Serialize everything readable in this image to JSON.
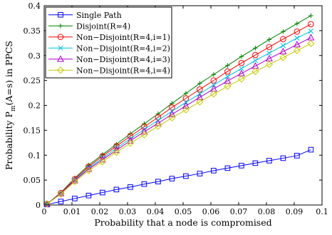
{
  "chart_data": {
    "type": "line",
    "title": "",
    "xlabel": "Probability that a node is compromised",
    "ylabel_main": "Probability P",
    "ylabel_sub": "m",
    "ylabel_rest": "(A=s) in PPCS",
    "xlim": [
      0,
      0.1
    ],
    "ylim": [
      0,
      0.4
    ],
    "xticks": [
      0,
      0.01,
      0.02,
      0.03,
      0.04,
      0.05,
      0.06,
      0.07,
      0.08,
      0.09,
      0.1
    ],
    "xtick_labels": [
      "0",
      "0.01",
      "0.02",
      "0.03",
      "0.04",
      "0.05",
      "0.06",
      "0.07",
      "0.08",
      "0.09",
      "0.1"
    ],
    "yticks": [
      0,
      0.05,
      0.1,
      0.15,
      0.2,
      0.25,
      0.3,
      0.35,
      0.4
    ],
    "ytick_labels": [
      "0",
      "0.05",
      "0.1",
      "0.15",
      "0.2",
      "0.25",
      "0.3",
      "0.35",
      "0.4"
    ],
    "grid": false,
    "legend_position": "top-left",
    "x": [
      0.001,
      0.006,
      0.011,
      0.016,
      0.021,
      0.026,
      0.031,
      0.036,
      0.041,
      0.046,
      0.051,
      0.056,
      0.061,
      0.066,
      0.071,
      0.076,
      0.081,
      0.086,
      0.091,
      0.096
    ],
    "series": [
      {
        "name": "Single Path",
        "color": "#0000ff",
        "marker": "square",
        "values": [
          0.001,
          0.007,
          0.013,
          0.019,
          0.025,
          0.031,
          0.036,
          0.042,
          0.047,
          0.053,
          0.058,
          0.063,
          0.069,
          0.074,
          0.079,
          0.084,
          0.089,
          0.094,
          0.099,
          0.111
        ]
      },
      {
        "name": "Disjoint(R=4)",
        "color": "#008000",
        "marker": "plus",
        "values": [
          0.002,
          0.025,
          0.054,
          0.08,
          0.101,
          0.122,
          0.143,
          0.163,
          0.183,
          0.204,
          0.224,
          0.244,
          0.262,
          0.28,
          0.298,
          0.315,
          0.332,
          0.348,
          0.364,
          0.38
        ]
      },
      {
        "name": "Non−Disjoint(R=4,i=1)",
        "color": "#ff0000",
        "marker": "circle",
        "values": [
          0.002,
          0.024,
          0.052,
          0.077,
          0.098,
          0.118,
          0.138,
          0.157,
          0.176,
          0.196,
          0.214,
          0.232,
          0.25,
          0.268,
          0.285,
          0.301,
          0.317,
          0.333,
          0.348,
          0.363
        ]
      },
      {
        "name": "Non−Disjoint(R=4,i=2)",
        "color": "#00bfe0",
        "marker": "x",
        "values": [
          0.002,
          0.023,
          0.05,
          0.074,
          0.094,
          0.114,
          0.133,
          0.152,
          0.17,
          0.188,
          0.206,
          0.223,
          0.241,
          0.258,
          0.274,
          0.29,
          0.305,
          0.32,
          0.335,
          0.349
        ]
      },
      {
        "name": "Non−Disjoint(R=4,i=3)",
        "color": "#b000c8",
        "marker": "triangle",
        "values": [
          0.002,
          0.023,
          0.049,
          0.072,
          0.091,
          0.11,
          0.129,
          0.147,
          0.164,
          0.182,
          0.199,
          0.216,
          0.233,
          0.249,
          0.264,
          0.279,
          0.294,
          0.308,
          0.322,
          0.336
        ]
      },
      {
        "name": "Non−Disjoint(R=4,i=4)",
        "color": "#c8c800",
        "marker": "diamond",
        "values": [
          0.002,
          0.022,
          0.047,
          0.069,
          0.087,
          0.106,
          0.124,
          0.141,
          0.158,
          0.175,
          0.191,
          0.207,
          0.223,
          0.238,
          0.253,
          0.268,
          0.282,
          0.296,
          0.31,
          0.324
        ]
      }
    ]
  }
}
